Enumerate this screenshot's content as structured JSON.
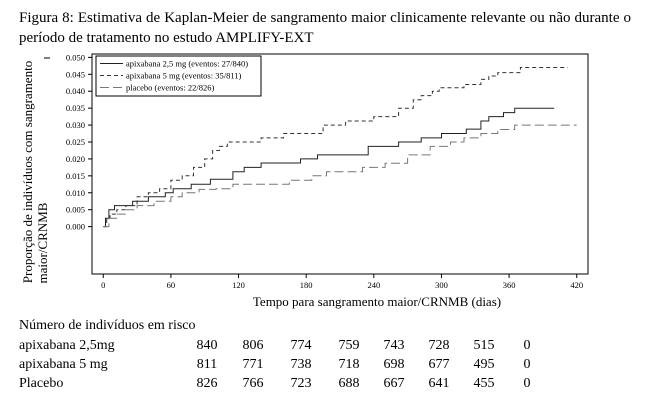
{
  "caption": "Figura 8: Estimativa de Kaplan-Meier de sangramento maior clinicamente relevante ou não durante o período de tratamento no estudo AMPLIFY-EXT",
  "chart_data": {
    "type": "line",
    "subtype": "kaplan-meier step",
    "xlabel": "Tempo para sangramento maior/CRNMB (dias)",
    "ylabel": [
      "Proporção de indivíduos com sangramento",
      "maior/CRNMB"
    ],
    "xlim": [
      -10,
      430
    ],
    "ylim": [
      -0.014,
      0.051
    ],
    "xticks": [
      0,
      60,
      120,
      180,
      240,
      300,
      360,
      420
    ],
    "yticks": [
      0.0,
      0.005,
      0.01,
      0.015,
      0.02,
      0.025,
      0.03,
      0.035,
      0.04,
      0.045,
      0.05
    ],
    "ytick_labels": [
      "0.000",
      "0.005",
      "0.010",
      "0.015",
      "0.020",
      "0.025",
      "0.030",
      "0.035",
      "0.040",
      "0.045",
      "0.050"
    ],
    "grid": false,
    "legend_position": "top-left",
    "series": [
      {
        "name": "apixabana 2,5 mg (eventos: 27/840)",
        "style": "solid",
        "color": "#222222",
        "x": [
          0,
          2,
          5,
          10,
          14,
          20,
          26,
          32,
          40,
          48,
          55,
          62,
          70,
          78,
          85,
          95,
          105,
          115,
          125,
          140,
          160,
          175,
          190,
          215,
          235,
          242,
          248,
          255,
          262,
          272,
          282,
          292,
          300,
          310,
          322,
          335,
          342,
          348,
          355,
          365,
          380,
          400
        ],
        "y": [
          0.0,
          0.0025,
          0.005,
          0.0062,
          0.0062,
          0.0062,
          0.0075,
          0.0075,
          0.0088,
          0.0088,
          0.01,
          0.0112,
          0.0112,
          0.0125,
          0.0125,
          0.014,
          0.014,
          0.0162,
          0.0175,
          0.0188,
          0.0188,
          0.02,
          0.0212,
          0.0212,
          0.0237,
          0.0237,
          0.0237,
          0.0237,
          0.025,
          0.025,
          0.0262,
          0.0262,
          0.0275,
          0.0275,
          0.0288,
          0.0312,
          0.0325,
          0.0325,
          0.0337,
          0.035,
          0.035,
          0.035
        ]
      },
      {
        "name": "apixabana 5 mg (eventos: 35/811)",
        "style": "dashed",
        "color": "#333333",
        "x": [
          0,
          3,
          6,
          12,
          20,
          30,
          40,
          50,
          60,
          70,
          80,
          90,
          97,
          103,
          110,
          120,
          140,
          160,
          178,
          195,
          215,
          240,
          262,
          275,
          282,
          292,
          298,
          320,
          335,
          342,
          350,
          370,
          390,
          412
        ],
        "y": [
          0.0,
          0.0025,
          0.0037,
          0.005,
          0.0062,
          0.0088,
          0.01,
          0.0112,
          0.0137,
          0.015,
          0.0175,
          0.02,
          0.0225,
          0.0237,
          0.025,
          0.025,
          0.0262,
          0.0275,
          0.0275,
          0.03,
          0.0312,
          0.0325,
          0.035,
          0.0375,
          0.0387,
          0.04,
          0.041,
          0.042,
          0.0435,
          0.0445,
          0.0455,
          0.047,
          0.047,
          0.047
        ]
      },
      {
        "name": "placebo (eventos: 22/826)",
        "style": "longdash",
        "color": "#777777",
        "x": [
          0,
          5,
          12,
          20,
          30,
          45,
          60,
          70,
          85,
          100,
          115,
          140,
          165,
          185,
          198,
          210,
          230,
          250,
          270,
          290,
          308,
          320,
          335,
          350,
          365,
          390,
          420
        ],
        "y": [
          0.0,
          0.0025,
          0.0037,
          0.005,
          0.0062,
          0.0075,
          0.0088,
          0.01,
          0.011,
          0.0112,
          0.0125,
          0.0125,
          0.0137,
          0.015,
          0.0162,
          0.0162,
          0.0175,
          0.0187,
          0.0212,
          0.0237,
          0.025,
          0.0262,
          0.0275,
          0.0287,
          0.03,
          0.03,
          0.03
        ]
      }
    ]
  },
  "risk_table": {
    "title": "Número de indivíduos em risco",
    "rows": [
      {
        "label": "apixabana 2,5mg",
        "values": [
          "840",
          "806",
          "774",
          "759",
          "743",
          "728",
          "515",
          "0"
        ]
      },
      {
        "label": "apixabana 5 mg",
        "values": [
          "811",
          "771",
          "738",
          "718",
          "698",
          "677",
          "495",
          "0"
        ]
      },
      {
        "label": "Placebo",
        "values": [
          "826",
          "766",
          "723",
          "688",
          "667",
          "641",
          "455",
          "0"
        ]
      }
    ]
  }
}
